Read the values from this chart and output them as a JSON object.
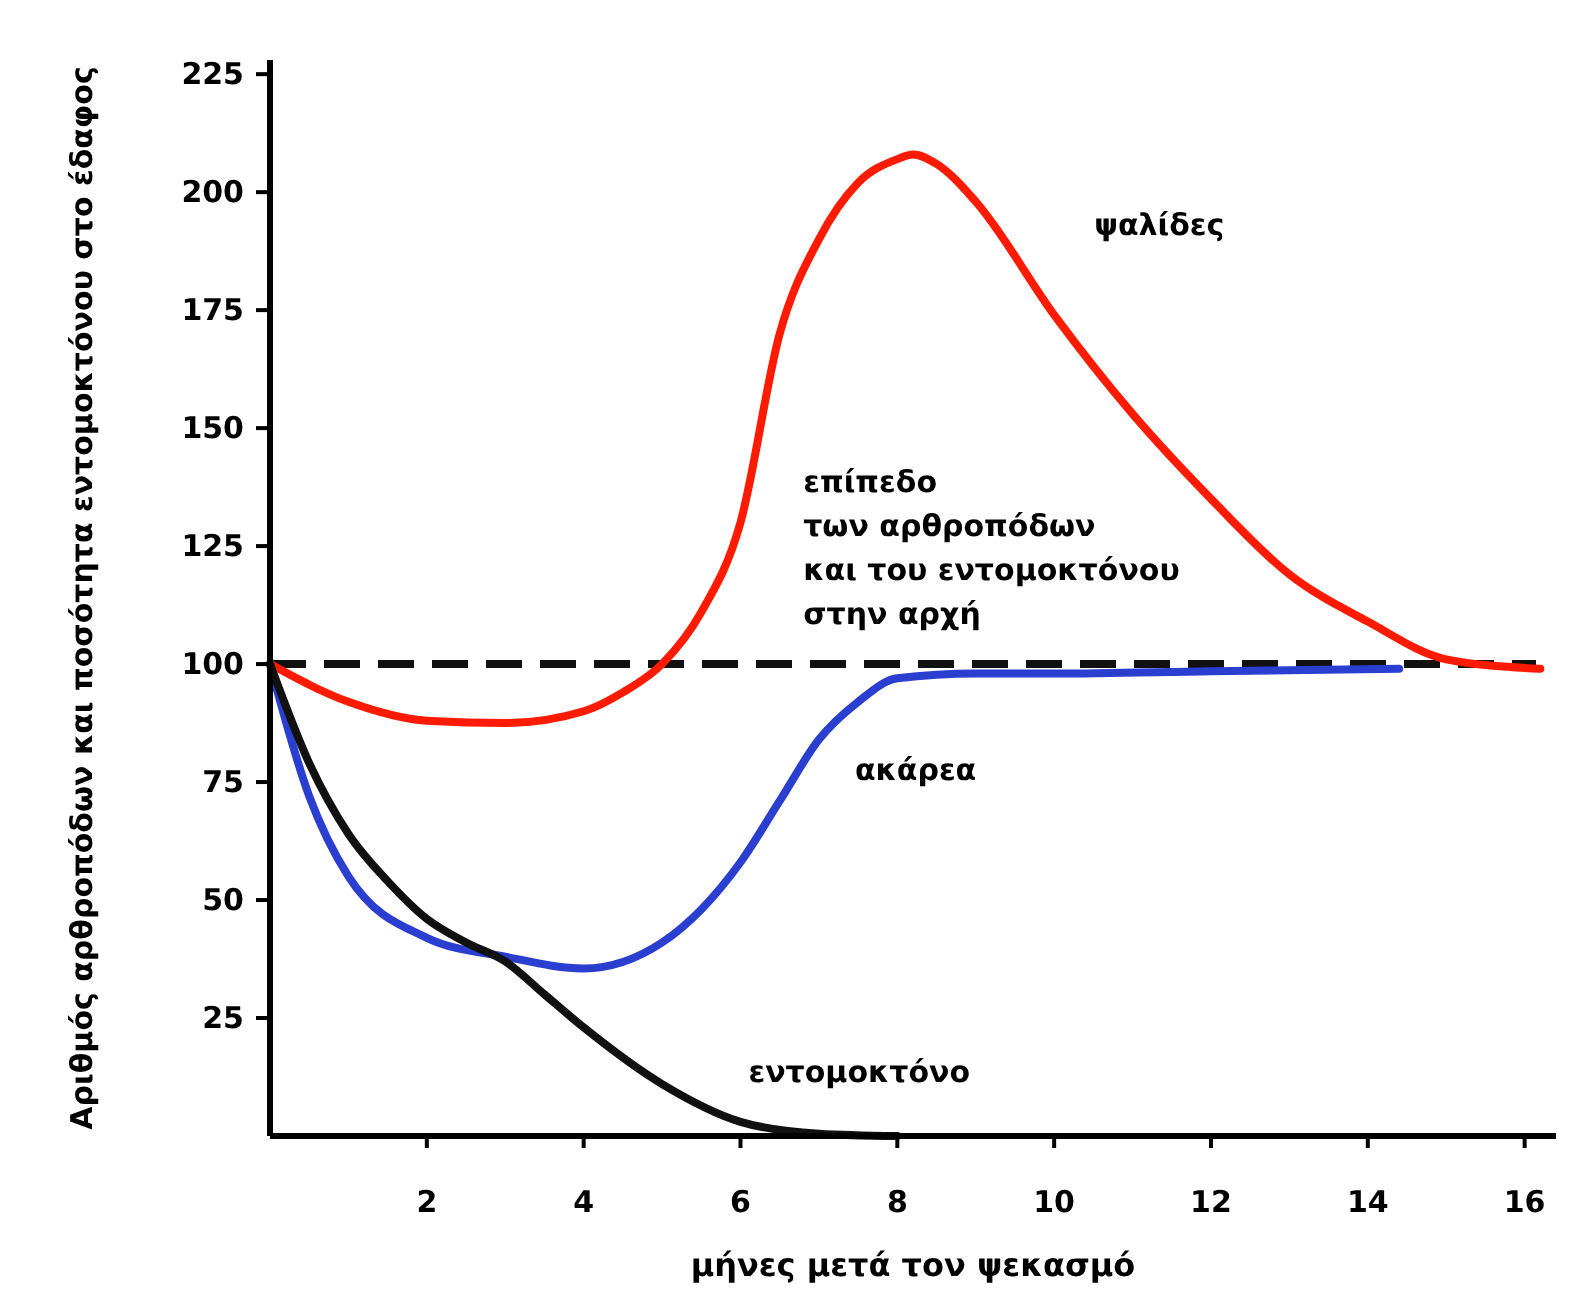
{
  "chart_data": {
    "type": "line",
    "xlabel": "μήνες μετά τον ψεκασμό",
    "ylabel": "Αριθμός αρθροπόδων και ποσότητα εντομοκτόνου στο έδαφος",
    "xlim": [
      0,
      16.4
    ],
    "ylim": [
      0,
      228
    ],
    "xticks": [
      2,
      4,
      6,
      8,
      10,
      12,
      14,
      16
    ],
    "yticks": [
      25,
      50,
      75,
      100,
      125,
      150,
      175,
      200,
      225
    ],
    "grid": false,
    "marker": "none",
    "line_style": "solid",
    "series": [
      {
        "name": "ψαλίδες",
        "color": "#ff1a00",
        "x": [
          0,
          1,
          2,
          3,
          4,
          4.5,
          5,
          5.5,
          6,
          6.5,
          7,
          7.5,
          8,
          8.2,
          8.5,
          9,
          10,
          11,
          12,
          13,
          14,
          15,
          16.2
        ],
        "values": [
          100,
          92,
          88,
          87.5,
          90,
          94,
          100,
          111,
          130,
          170,
          190,
          202,
          207,
          208,
          206,
          198,
          174,
          153,
          135,
          119,
          109,
          101,
          99
        ]
      },
      {
        "name": "ακάρεα",
        "color": "#2a3fd0",
        "x": [
          0,
          0.5,
          1,
          2,
          3,
          4,
          5,
          5.5,
          6,
          6.5,
          7,
          7.5,
          8,
          9,
          10,
          12,
          14.4
        ],
        "values": [
          100,
          72,
          55,
          42,
          38,
          35.5,
          41,
          48,
          58,
          71,
          84,
          92,
          97,
          98,
          98,
          98.5,
          99
        ]
      },
      {
        "name": "εντομοκτόνο",
        "color": "#111111",
        "x": [
          0,
          0.5,
          1,
          1.5,
          2,
          2.5,
          3,
          3.5,
          4,
          5,
          6,
          7,
          8
        ],
        "values": [
          100,
          79,
          64,
          54,
          46,
          41,
          37,
          30,
          23,
          11,
          3,
          0.5,
          0
        ]
      }
    ],
    "ref_lines": [
      {
        "axis": "y",
        "value": 100,
        "label": "επίπεδο\nτων αρθροπόδων\nκαι του εντομοκτόνου\nστην αρχή",
        "color": "#111111",
        "line_style": "dashed"
      }
    ]
  }
}
